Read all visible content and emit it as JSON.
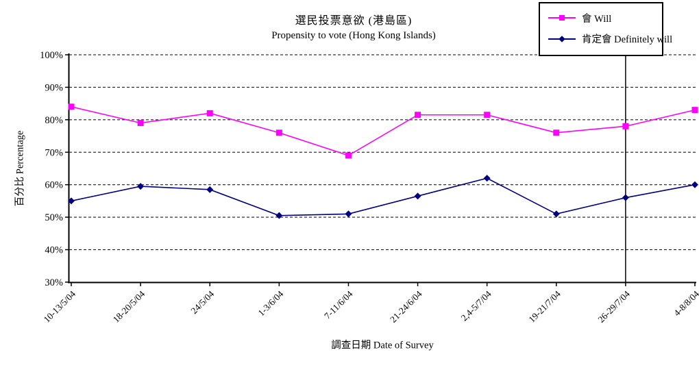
{
  "chart_data": {
    "type": "line",
    "title": "選民投票意欲 (港島區)",
    "subtitle": "Propensity to vote (Hong Kong Islands)",
    "xlabel": "調查日期 Date of Survey",
    "ylabel": "百分比 Percentage",
    "ylim": [
      30,
      100
    ],
    "ytick_step": 10,
    "ytick_labels": [
      "30%",
      "40%",
      "50%",
      "60%",
      "70%",
      "80%",
      "90%",
      "100%"
    ],
    "grid": "horizontal-dashed",
    "legend_position": "top-right",
    "categories": [
      "10-13/5/04",
      "18-20/5/04",
      "24/5/04",
      "1-3/6/04",
      "7-11/6/04",
      "21-24/6/04",
      "2,4-5/7/04",
      "19-21/7/04",
      "26-29/7/04",
      "4-8/8/04"
    ],
    "series": [
      {
        "name": "會 Will",
        "color": "#FF00FF",
        "marker": "square",
        "values": [
          84,
          79,
          82,
          76,
          69,
          81.5,
          81.5,
          76,
          78,
          83
        ]
      },
      {
        "name": "肯定會 Definitely will",
        "color": "#000080",
        "marker": "diamond",
        "values": [
          55,
          59.5,
          58.5,
          50.5,
          51,
          56.5,
          62,
          51,
          56,
          60
        ]
      }
    ],
    "annotation": {
      "type": "vertical-line",
      "at_category": "26-29/7/04",
      "color": "#000000"
    },
    "axis_color": "#000000",
    "grid_color": "#000000"
  }
}
